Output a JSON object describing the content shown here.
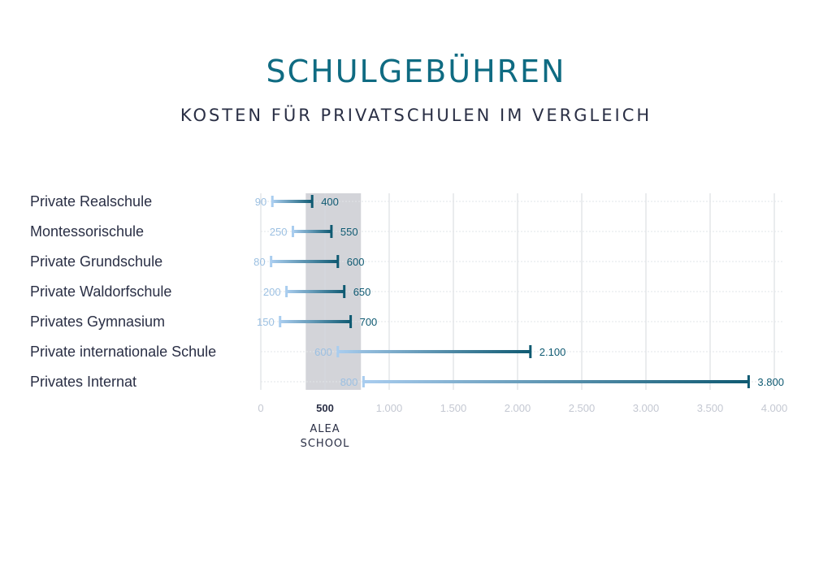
{
  "title": "SCHULGEBÜHREN",
  "subtitle": "KOSTEN FÜR PRIVATSCHULEN IM VERGLEICH",
  "colors": {
    "title": "#0f6b82",
    "text": "#2a2f45",
    "range_start": "#a9cdef",
    "range_end": "#0f5a72",
    "highlight_band": "#d3d4d9",
    "grid": "#d6d8de",
    "tick": "#c4c8d2"
  },
  "chart_data": {
    "type": "range-bar",
    "title": "SCHULGEBÜHREN",
    "subtitle": "KOSTEN FÜR PRIVATSCHULEN IM VERGLEICH",
    "categories": [
      "Private Realschule",
      "Montessorischule",
      "Private Grundschule",
      "Private Waldorfschule",
      "Privates Gymnasium",
      "Private internationale Schule",
      "Privates Internat"
    ],
    "min": [
      90,
      250,
      80,
      200,
      150,
      600,
      800
    ],
    "max": [
      400,
      550,
      600,
      650,
      700,
      2100,
      3800
    ],
    "min_labels": [
      "90",
      "250",
      "80",
      "200",
      "150",
      "600",
      "800"
    ],
    "max_labels": [
      "400",
      "550",
      "600",
      "650",
      "700",
      "2.100",
      "3.800"
    ],
    "xlim": [
      0,
      4000
    ],
    "xticks": [
      0,
      500,
      1000,
      1500,
      2000,
      2500,
      3000,
      3500,
      4000
    ],
    "xtick_labels": [
      "0",
      "500",
      "1.000",
      "1.500",
      "2.000",
      "2.500",
      "3.000",
      "3.500",
      "4.000"
    ],
    "highlight": {
      "from": 350,
      "to": 780,
      "tick": "500",
      "label_lines": [
        "ALEA",
        "SCHOOL"
      ]
    },
    "grid": true
  }
}
